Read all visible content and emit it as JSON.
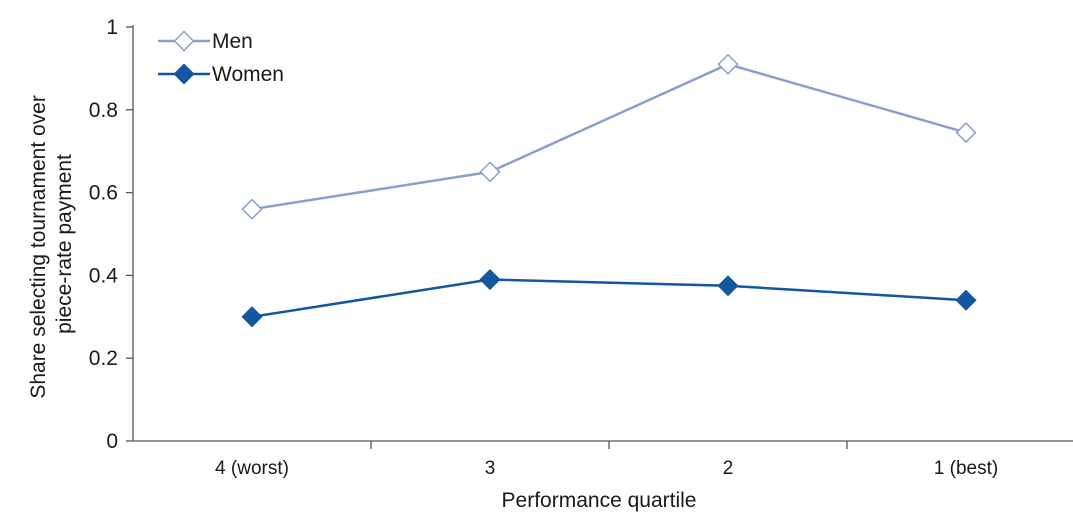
{
  "chart_data": {
    "type": "line",
    "categories": [
      "4 (worst)",
      "3",
      "2",
      "1 (best)"
    ],
    "series": [
      {
        "name": "Men",
        "values": [
          0.56,
          0.65,
          0.91,
          0.745
        ],
        "color": "#8c9fcc",
        "marker": "open-diamond"
      },
      {
        "name": "Women",
        "values": [
          0.3,
          0.39,
          0.375,
          0.34
        ],
        "color": "#1357a0",
        "marker": "filled-diamond"
      }
    ],
    "xlabel": "Performance quartile",
    "ylabel_lines": [
      "Share selecting tournament over",
      "piece-rate payment"
    ],
    "ylim": [
      0,
      1
    ],
    "yticks": [
      "0",
      "0.2",
      "0.4",
      "0.6",
      "0.8",
      "1"
    ],
    "grid": false,
    "legend_position": "top-left"
  }
}
